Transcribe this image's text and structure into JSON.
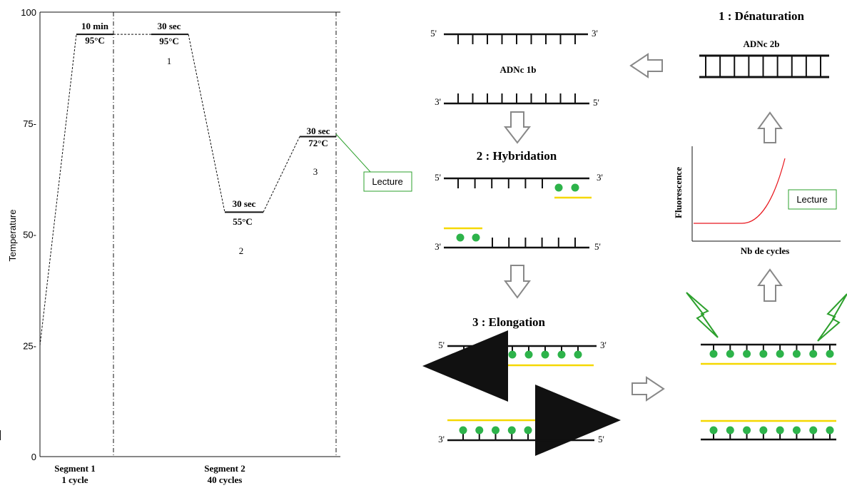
{
  "chart_data": {
    "type": "line",
    "ylabel": "Temperature",
    "ylim": [
      0,
      100
    ],
    "y_ticks": [
      "0",
      "25-",
      "50-",
      "75-",
      "100"
    ],
    "points": [
      {
        "segment": 1,
        "temperature": 25
      },
      {
        "segment": 1,
        "temperature": 95
      },
      {
        "segment": 1,
        "temperature": 95
      },
      {
        "segment": 2,
        "temperature": 95
      },
      {
        "segment": 2,
        "temperature": 95
      },
      {
        "segment": 2,
        "temperature": 55
      },
      {
        "segment": 2,
        "temperature": 55
      },
      {
        "segment": 2,
        "temperature": 72
      },
      {
        "segment": 2,
        "temperature": 72
      }
    ],
    "steps": [
      {
        "time": "10 min",
        "temp": "95°C",
        "step": ""
      },
      {
        "time": "30 sec",
        "temp": "95°C",
        "step": "1"
      },
      {
        "time": "30 sec",
        "temp": "55°C",
        "step": "2"
      },
      {
        "time": "30 sec",
        "temp": "72°C",
        "step": "3"
      }
    ],
    "segments": [
      {
        "name": "Segment 1",
        "cycles": "1 cycle"
      },
      {
        "name": "Segment 2",
        "cycles": "40 cycles"
      }
    ],
    "reading_label": "Lecture"
  },
  "diagram": {
    "denaturation_title": "1 : Dénaturation",
    "hybridation_title": "2 : Hybridation",
    "elongation_title": "3 : Elongation",
    "cdna_2b": "ADNc 2b",
    "cdna_1b": "ADNc 1b",
    "five_prime": "5'",
    "three_prime": "3'",
    "fluorescence_axis": "Fluorescence",
    "cycles_axis": "Nb de cycles",
    "reading_label": "Lecture"
  },
  "colors": {
    "primer": "#f5d800",
    "probe": "#2db34a",
    "polymerase": "#e8161d",
    "reading": "#2da02d",
    "curve": "#e8161d",
    "arrow": "#888888"
  }
}
